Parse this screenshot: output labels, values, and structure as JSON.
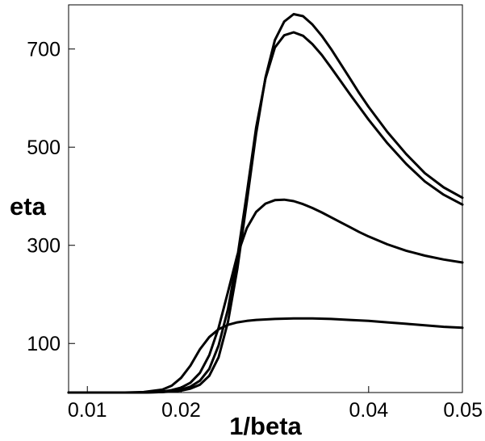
{
  "chart_data": {
    "type": "line",
    "xlabel": "1/beta",
    "ylabel": "eta",
    "xlim": [
      0.008,
      0.05
    ],
    "ylim": [
      0,
      790
    ],
    "xticks": [
      {
        "value": 0.01,
        "label": "0.01"
      },
      {
        "value": 0.02,
        "label": "0.02"
      },
      {
        "value": 0.04,
        "label": "0.04"
      },
      {
        "value": 0.05,
        "label": "0.05"
      }
    ],
    "yticks": [
      {
        "value": 100,
        "label": "100"
      },
      {
        "value": 300,
        "label": "300"
      },
      {
        "value": 500,
        "label": "500"
      },
      {
        "value": 700,
        "label": "700"
      }
    ],
    "grid": false,
    "series": [
      {
        "x": [
          0.008,
          0.01,
          0.012,
          0.014,
          0.016,
          0.018,
          0.019,
          0.02,
          0.021,
          0.022,
          0.023,
          0.024,
          0.025,
          0.026,
          0.027,
          0.028,
          0.029,
          0.03,
          0.031,
          0.032,
          0.033,
          0.034,
          0.035,
          0.036,
          0.037,
          0.038,
          0.039,
          0.04,
          0.042,
          0.044,
          0.046,
          0.048,
          0.05
        ],
        "y": [
          0,
          0,
          0,
          0,
          0,
          1,
          2,
          4,
          8,
          16,
          34,
          72,
          144,
          252,
          388,
          528,
          642,
          718,
          756,
          771,
          767,
          750,
          727,
          700,
          670,
          640,
          610,
          582,
          531,
          486,
          447,
          418,
          397
        ]
      },
      {
        "x": [
          0.008,
          0.01,
          0.012,
          0.014,
          0.016,
          0.018,
          0.019,
          0.02,
          0.021,
          0.022,
          0.023,
          0.024,
          0.025,
          0.026,
          0.027,
          0.028,
          0.029,
          0.03,
          0.031,
          0.032,
          0.033,
          0.034,
          0.035,
          0.036,
          0.037,
          0.038,
          0.039,
          0.04,
          0.042,
          0.044,
          0.046,
          0.048,
          0.05
        ],
        "y": [
          0,
          0,
          0,
          0,
          0,
          1,
          3,
          6,
          12,
          24,
          48,
          96,
          170,
          275,
          405,
          540,
          640,
          703,
          728,
          734,
          727,
          710,
          688,
          662,
          635,
          608,
          582,
          556,
          508,
          466,
          430,
          403,
          383
        ]
      },
      {
        "x": [
          0.008,
          0.01,
          0.012,
          0.014,
          0.016,
          0.018,
          0.019,
          0.02,
          0.021,
          0.022,
          0.023,
          0.024,
          0.025,
          0.026,
          0.027,
          0.028,
          0.029,
          0.03,
          0.031,
          0.032,
          0.033,
          0.034,
          0.035,
          0.036,
          0.037,
          0.038,
          0.039,
          0.04,
          0.042,
          0.044,
          0.046,
          0.048,
          0.05
        ],
        "y": [
          0,
          0,
          0,
          0,
          0,
          2,
          5,
          10,
          20,
          40,
          76,
          132,
          205,
          280,
          335,
          368,
          385,
          392,
          393,
          390,
          384,
          376,
          367,
          357,
          347,
          337,
          327,
          318,
          302,
          289,
          279,
          271,
          265
        ]
      },
      {
        "x": [
          0.008,
          0.01,
          0.012,
          0.014,
          0.016,
          0.018,
          0.019,
          0.02,
          0.021,
          0.022,
          0.023,
          0.024,
          0.025,
          0.026,
          0.027,
          0.028,
          0.03,
          0.032,
          0.034,
          0.036,
          0.038,
          0.04,
          0.042,
          0.044,
          0.046,
          0.048,
          0.05
        ],
        "y": [
          0,
          0,
          0,
          0,
          1,
          6,
          14,
          30,
          55,
          88,
          113,
          129,
          138,
          143,
          146,
          148,
          150,
          151,
          151,
          150,
          148,
          146,
          143,
          140,
          137,
          134,
          132
        ]
      }
    ]
  }
}
